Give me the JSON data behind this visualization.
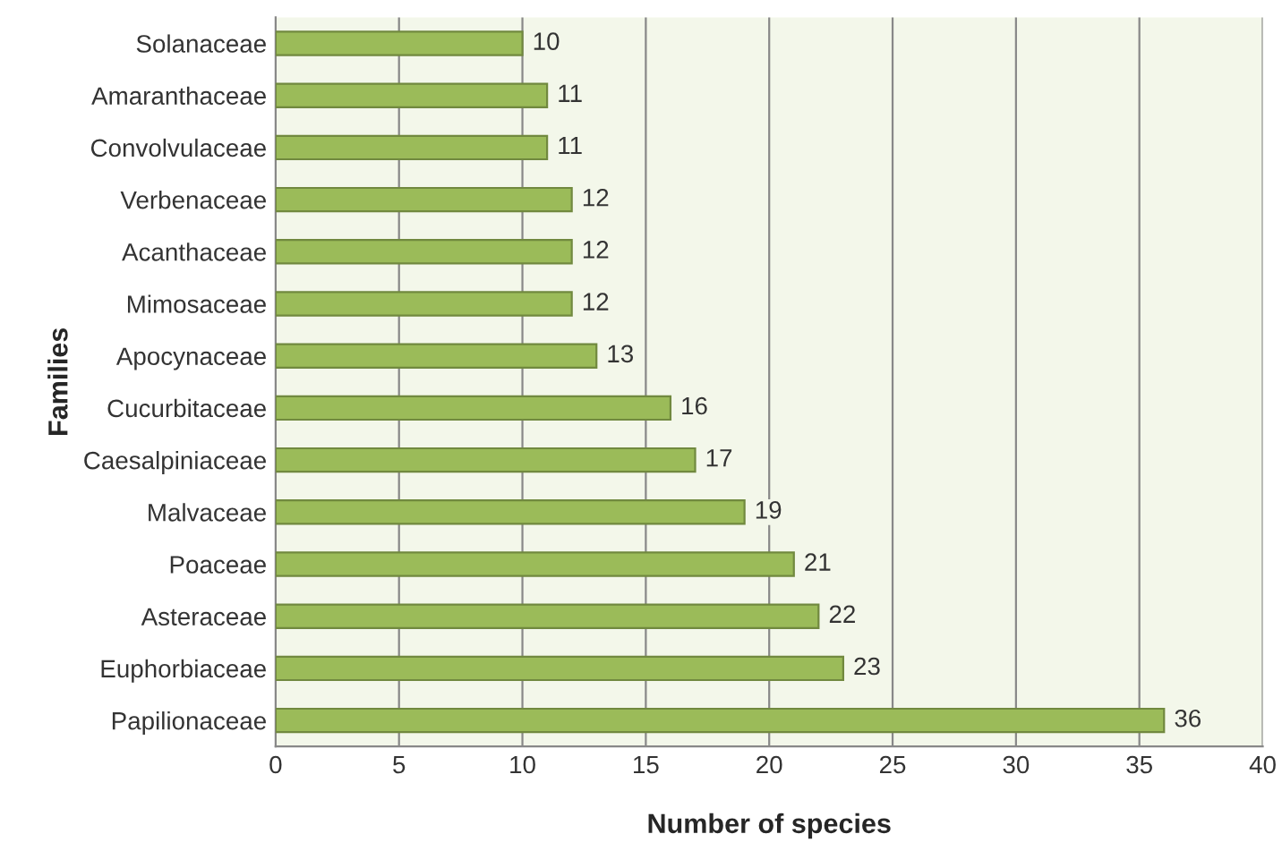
{
  "chart_data": {
    "type": "bar",
    "orientation": "horizontal",
    "xlabel": "Number of species",
    "ylabel": "Families",
    "categories": [
      "Solanaceae",
      "Amaranthaceae",
      "Convolvulaceae",
      "Verbenaceae",
      "Acanthaceae",
      "Mimosaceae",
      "Apocynaceae",
      "Cucurbitaceae",
      "Caesalpiniaceae",
      "Malvaceae",
      "Poaceae",
      "Asteraceae",
      "Euphorbiaceae",
      "Papilionaceae"
    ],
    "values": [
      10,
      11,
      11,
      12,
      12,
      12,
      13,
      16,
      17,
      19,
      21,
      22,
      23,
      36
    ],
    "color": "#9bbb59",
    "xlim": [
      0,
      40
    ],
    "xticks": [
      0,
      5,
      10,
      15,
      20,
      25,
      30,
      35,
      40
    ],
    "grid": "x",
    "data_labels": true
  }
}
